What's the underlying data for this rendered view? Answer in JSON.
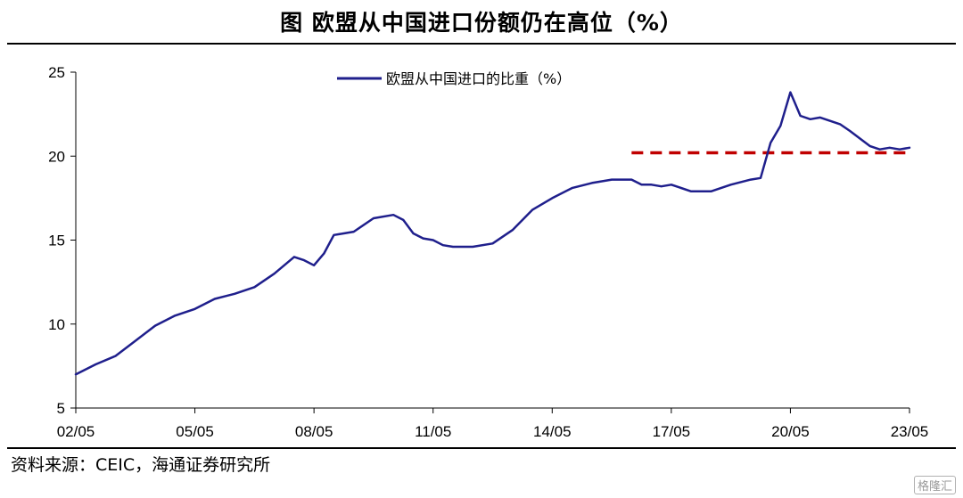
{
  "title": "图 欧盟从中国进口份额仍在高位（%）",
  "source": "资料来源：CEIC，海通证券研究所",
  "watermark": "格隆汇",
  "chart_data": {
    "type": "line",
    "title": "图 欧盟从中国进口份额仍在高位（%）",
    "xlabel": "",
    "ylabel": "",
    "ylim": [
      5,
      25
    ],
    "yticks": [
      5,
      10,
      15,
      20,
      25
    ],
    "xticks": [
      "02/05",
      "05/05",
      "08/05",
      "11/05",
      "14/05",
      "17/05",
      "20/05",
      "23/05"
    ],
    "legend_position": "top-center",
    "grid": false,
    "series": [
      {
        "name": "欧盟从中国进口的比重（%）",
        "color": "#1f1f8c",
        "x": [
          "02/05",
          "02/11",
          "03/05",
          "03/11",
          "04/05",
          "04/11",
          "05/05",
          "05/11",
          "06/05",
          "06/11",
          "07/05",
          "07/11",
          "08/02",
          "08/05",
          "08/08",
          "08/11",
          "09/02",
          "09/05",
          "09/11",
          "10/05",
          "10/08",
          "10/11",
          "11/02",
          "11/05",
          "11/08",
          "11/11",
          "12/05",
          "12/11",
          "13/05",
          "13/11",
          "14/05",
          "14/11",
          "15/05",
          "15/11",
          "16/05",
          "16/08",
          "16/11",
          "17/02",
          "17/05",
          "17/11",
          "18/05",
          "18/11",
          "19/05",
          "19/08",
          "19/11",
          "20/02",
          "20/05",
          "20/08",
          "20/11",
          "21/02",
          "21/05",
          "21/08",
          "21/11",
          "22/05",
          "22/08",
          "22/11",
          "23/02",
          "23/05"
        ],
        "values": [
          7.0,
          7.6,
          8.1,
          9.0,
          9.9,
          10.5,
          10.9,
          11.5,
          11.8,
          12.2,
          13.0,
          14.0,
          13.8,
          13.5,
          14.2,
          15.3,
          15.4,
          15.5,
          16.3,
          16.5,
          16.2,
          15.4,
          15.1,
          15.0,
          14.7,
          14.6,
          14.6,
          14.8,
          15.6,
          16.8,
          17.5,
          18.1,
          18.4,
          18.6,
          18.6,
          18.3,
          18.3,
          18.2,
          18.3,
          17.9,
          17.9,
          18.3,
          18.6,
          18.7,
          20.8,
          21.8,
          23.8,
          22.4,
          22.2,
          22.3,
          22.1,
          21.9,
          21.5,
          20.6,
          20.4,
          20.5,
          20.4,
          20.5
        ]
      }
    ],
    "reference_line": {
      "y": 20.2,
      "x_start": "16/05",
      "x_end": "23/05",
      "color": "#c00000",
      "style": "dashed"
    }
  }
}
